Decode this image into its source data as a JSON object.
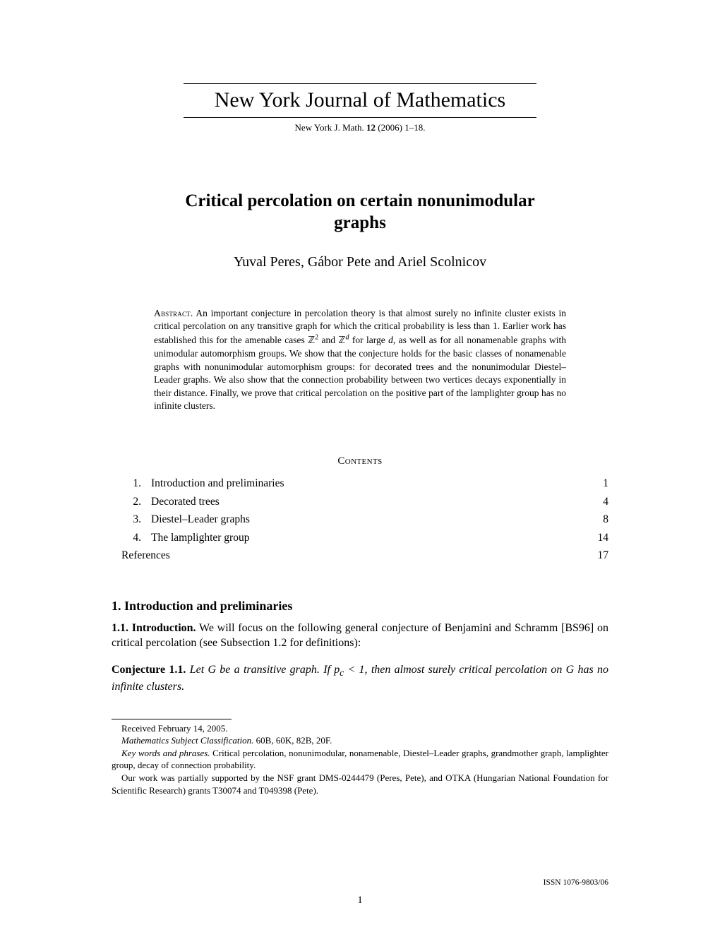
{
  "journal": {
    "name": "New York Journal of Mathematics",
    "ref_prefix": "New York J. Math.",
    "volume": "12",
    "year_pages": "(2006) 1–18."
  },
  "title_line1": "Critical percolation on certain nonunimodular",
  "title_line2": "graphs",
  "authors": "Yuval Peres, Gábor Pete and Ariel Scolnicov",
  "abstract": {
    "label": "Abstract.",
    "pre": "An important conjecture in percolation theory is that almost surely no infinite cluster exists in critical percolation on any transitive graph for which the critical probability is less than 1. Earlier work has established this for the amenable cases ",
    "z2": "ℤ",
    "sup2": "2",
    "and": " and ",
    "zd": "ℤ",
    "supd": "d",
    "mid": " for large ",
    "d_ital": "d",
    "post": ", as well as for all nonamenable graphs with unimodular automorphism groups. We show that the conjecture holds for the basic classes of nonamenable graphs with nonunimodular automorphism groups: for decorated trees and the nonunimodular Diestel–Leader graphs. We also show that the connection probability between two vertices decays exponentially in their distance. Finally, we prove that critical percolation on the positive part of the lamplighter group has no infinite clusters."
  },
  "contents_heading": "Contents",
  "toc": [
    {
      "n": "1.",
      "t": "Introduction and preliminaries",
      "p": "1"
    },
    {
      "n": "2.",
      "t": "Decorated trees",
      "p": "4"
    },
    {
      "n": "3.",
      "t": "Diestel–Leader graphs",
      "p": "8"
    },
    {
      "n": "4.",
      "t": "The lamplighter group",
      "p": "14"
    },
    {
      "n": "",
      "t": "References",
      "p": "17"
    }
  ],
  "section1": "1. Introduction and preliminaries",
  "subsection11_label": "1.1. Introduction.",
  "subsection11_body": "We will focus on the following general conjecture of Benjamini and Schramm [BS96] on critical percolation (see Subsection 1.2 for definitions):",
  "conjecture": {
    "label": "Conjecture 1.1.",
    "pre": "Let G be a transitive graph. If p",
    "c": "c",
    "post": " < 1, then almost surely critical percolation on G has no infinite clusters."
  },
  "footnotes": {
    "received": "Received February 14, 2005.",
    "msc_label": "Mathematics Subject Classification.",
    "msc": "60B, 60K, 82B, 20F.",
    "keywords_label": "Key words and phrases.",
    "keywords": "Critical percolation, nonunimodular, nonamenable, Diestel–Leader graphs, grandmother graph, lamplighter group, decay of connection probability.",
    "funding": "Our work was partially supported by the NSF grant DMS-0244479 (Peres, Pete), and OTKA (Hungarian National Foundation for Scientific Research) grants T30074 and T049398 (Pete)."
  },
  "issn": "ISSN 1076-9803/06",
  "pagenum": "1"
}
